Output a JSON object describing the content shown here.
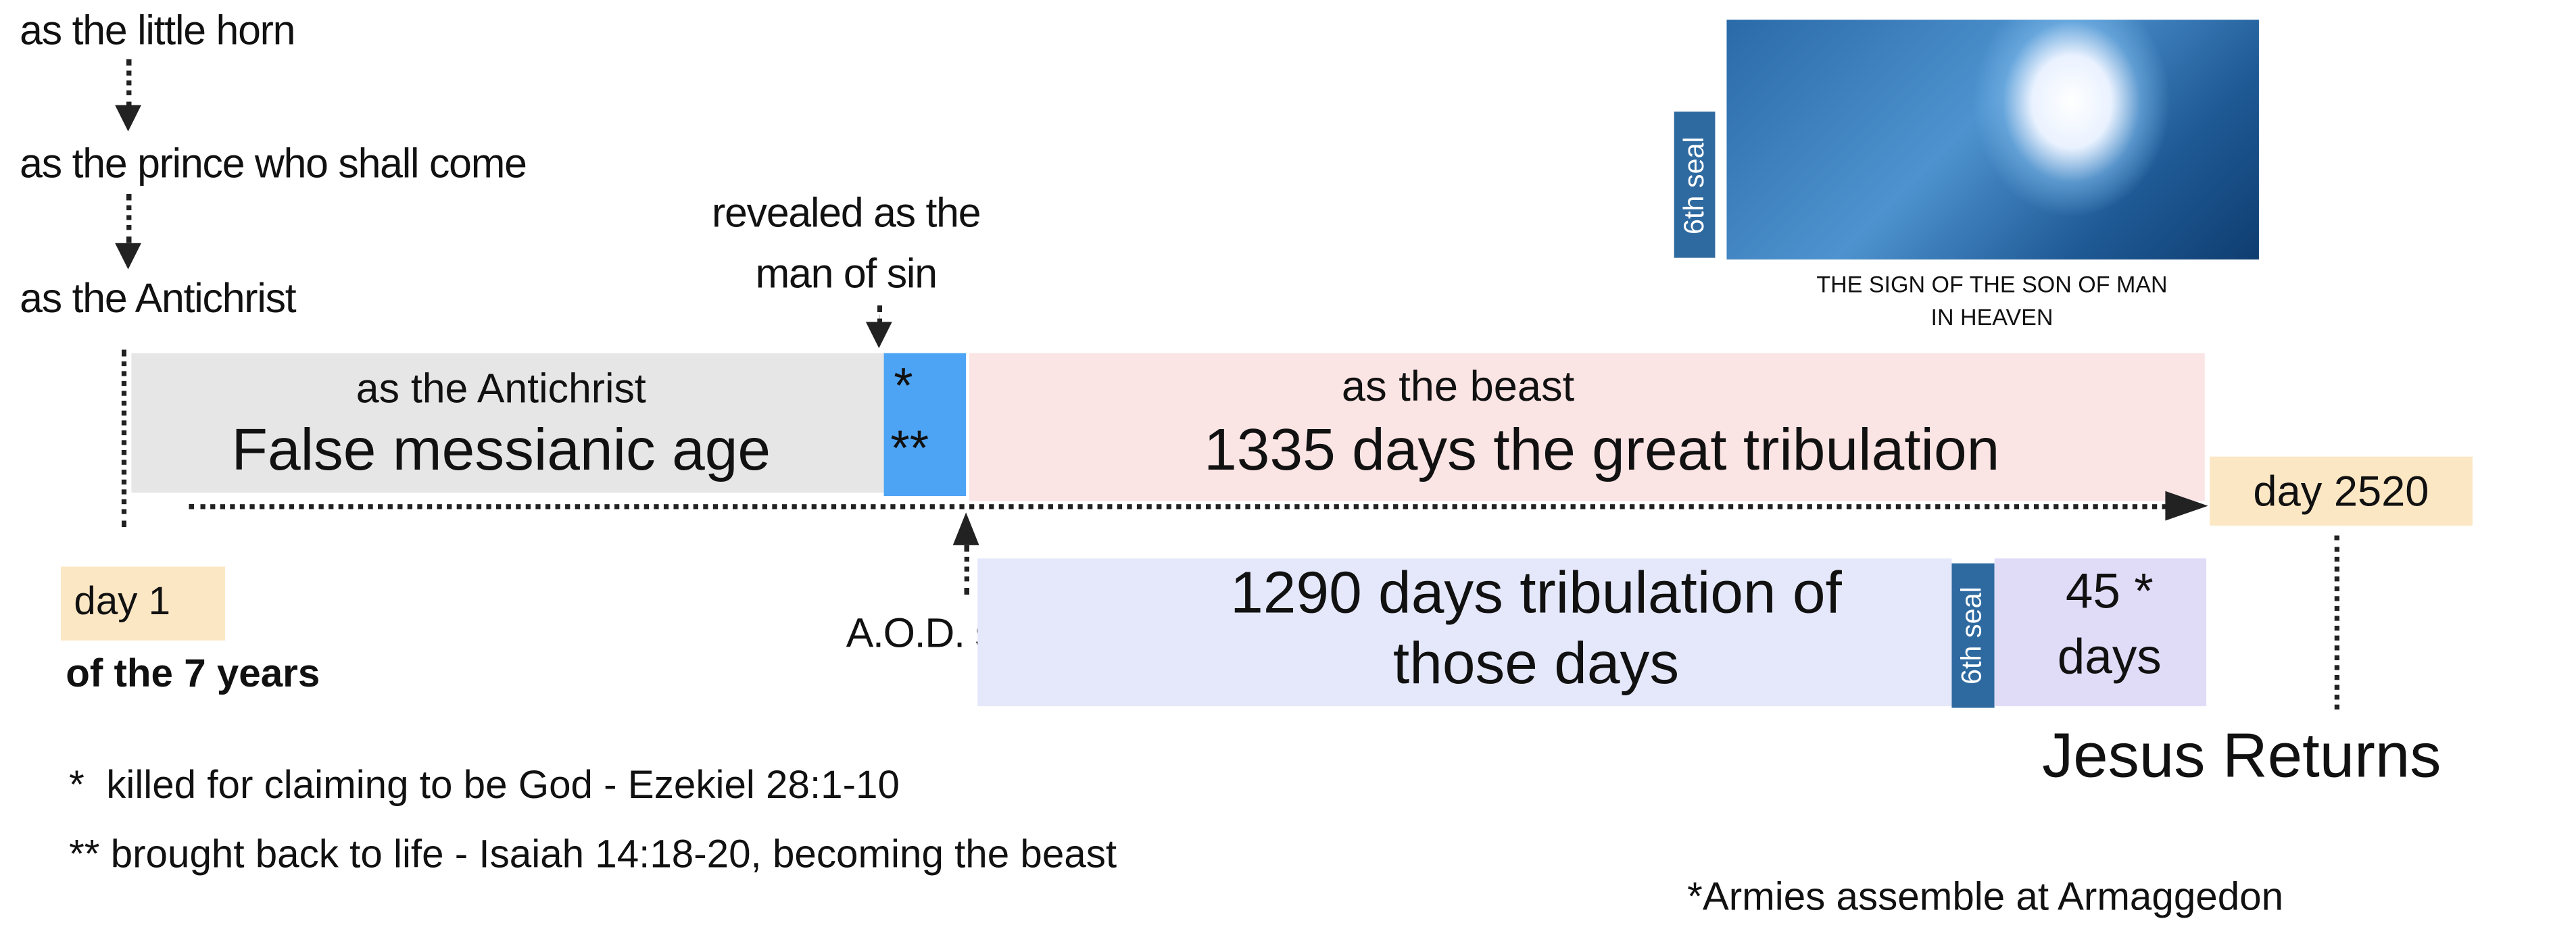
{
  "stages": {
    "little_horn": "as the little horn",
    "prince": "as the prince who shall come",
    "antichrist": "as the Antichrist",
    "revealed_line1": "revealed as the",
    "revealed_line2": "man of sin"
  },
  "timeline": {
    "gray_box": {
      "subtitle": "as the Antichrist",
      "title": "False messianic age",
      "color": "#e6e6e6"
    },
    "blue_box": {
      "line1": "*",
      "line2": "**",
      "color": "#4ea4f4"
    },
    "pink_box": {
      "subtitle": "as the beast",
      "title": "1335 days the great tribulation",
      "color": "#fbe4e4"
    },
    "day_start": {
      "label": "day 1",
      "sub": "of the 7 years"
    },
    "day_end": {
      "label": "day 2520"
    },
    "aod": "A.O.D. setup",
    "lavender_box": {
      "line1": "1290 days tribulation of",
      "line2": "those days",
      "color": "#e4e8fa"
    },
    "seal_bottom": "6th seal",
    "purple_box": {
      "line1": "45 *",
      "line2": "days",
      "color": "#e0dcf8"
    },
    "jesus_returns": "Jesus Returns"
  },
  "image_panel": {
    "seal_label": "6th seal",
    "caption_line1": "THE SIGN OF THE SON OF MAN",
    "caption_line2": "IN HEAVEN"
  },
  "footnotes": {
    "single": "*  killed for claiming to be God - Ezekiel 28:1-10",
    "double": "** brought back to life - Isaiah 14:18-20, becoming the beast",
    "armies": "*Armies assemble at Armaggedon"
  }
}
